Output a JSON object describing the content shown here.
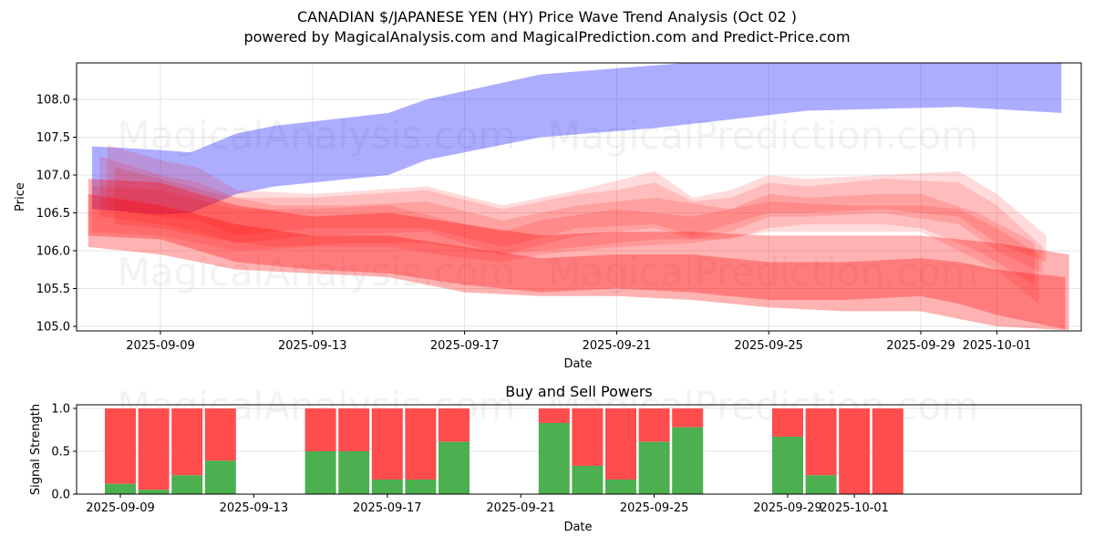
{
  "header": {
    "title": "CANADIAN $/JAPANESE YEN (HY) Price Wave Trend Analysis (Oct 02 )",
    "subtitle": "powered by MagicalAnalysis.com and MagicalPrediction.com and Predict-Price.com"
  },
  "watermarks": [
    "MagicalAnalysis.com",
    "MagicalPrediction.com"
  ],
  "colors": {
    "blue_band": "#0000ff",
    "red_band": "#ff0000",
    "buy": "#4caf50",
    "sell": "#ff4d4d",
    "grid": "#e6e6e6"
  },
  "chart_data": [
    {
      "type": "area",
      "title": "CANADIAN $/JAPANESE YEN (HY) Price Wave Trend Analysis (Oct 02 )",
      "xlabel": "Date",
      "ylabel": "Price",
      "ylim": [
        104.95,
        108.45
      ],
      "xlim_days_from_2025-09-09": [
        -2.2,
        24.2
      ],
      "yticks": [
        105.0,
        105.5,
        106.0,
        106.5,
        107.0,
        107.5,
        108.0
      ],
      "ytick_labels": [
        "105.0",
        "105.5",
        "106.0",
        "106.5",
        "107.0",
        "107.5",
        "108.0"
      ],
      "xticks_days": [
        0,
        4,
        8,
        12,
        16,
        20,
        22
      ],
      "xtick_labels": [
        "2025-09-09",
        "2025-09-13",
        "2025-09-17",
        "2025-09-21",
        "2025-09-25",
        "2025-09-29",
        "2025-10-01"
      ],
      "grid": true,
      "series": [
        {
          "name": "blue-trend-band",
          "color": "blue",
          "opacity": 0.32,
          "x_days": [
            -1.8,
            0,
            0.8,
            2,
            3,
            6,
            7,
            10,
            13,
            17,
            21,
            23.7
          ],
          "upper": [
            107.38,
            107.33,
            107.3,
            107.55,
            107.65,
            107.82,
            108.0,
            108.33,
            108.45,
            108.6,
            108.62,
            108.72
          ],
          "lower": [
            106.55,
            106.48,
            106.5,
            106.75,
            106.85,
            107.0,
            107.2,
            107.5,
            107.62,
            107.85,
            107.9,
            107.82
          ]
        },
        {
          "name": "red-band-upper-wave-1",
          "color": "red",
          "opacity": 0.14,
          "x_days": [
            -1.4,
            0,
            1,
            2,
            4,
            7,
            9,
            11,
            13,
            14,
            15,
            16,
            17,
            19,
            21,
            22,
            23.3
          ],
          "upper": [
            107.4,
            107.2,
            107.1,
            106.8,
            106.75,
            106.85,
            106.6,
            106.8,
            107.05,
            106.7,
            106.8,
            107.0,
            106.95,
            107.0,
            107.05,
            106.75,
            106.2
          ],
          "lower": [
            106.55,
            106.45,
            106.4,
            106.2,
            106.3,
            106.3,
            106.05,
            106.3,
            106.35,
            106.2,
            106.35,
            106.5,
            106.5,
            106.55,
            106.45,
            106.1,
            105.85
          ]
        },
        {
          "name": "red-band-upper-wave-2",
          "color": "red",
          "opacity": 0.14,
          "x_days": [
            -1.6,
            0,
            1,
            2,
            4,
            7,
            9,
            11,
            12,
            13,
            14,
            15,
            16,
            17,
            19,
            21,
            22,
            23.2
          ],
          "upper": [
            107.25,
            107.0,
            106.9,
            106.7,
            106.7,
            106.8,
            106.55,
            106.75,
            106.8,
            106.9,
            106.65,
            106.7,
            106.9,
            106.85,
            106.95,
            106.9,
            106.6,
            106.05
          ],
          "lower": [
            106.45,
            106.35,
            106.25,
            106.1,
            106.2,
            106.25,
            105.95,
            106.2,
            106.25,
            106.3,
            106.15,
            106.25,
            106.45,
            106.45,
            106.5,
            106.35,
            106.0,
            105.7
          ]
        },
        {
          "name": "red-band-upper-wave-3",
          "color": "red",
          "opacity": 0.14,
          "x_days": [
            -1.2,
            0,
            1.5,
            3,
            5,
            7,
            9,
            11,
            13,
            15,
            16,
            17,
            19,
            20,
            21.5,
            23
          ],
          "upper": [
            107.1,
            106.95,
            106.75,
            106.6,
            106.6,
            106.65,
            106.4,
            106.6,
            106.7,
            106.55,
            106.75,
            106.7,
            106.75,
            106.75,
            106.5,
            106.1
          ],
          "lower": [
            106.35,
            106.3,
            106.15,
            106.05,
            106.1,
            106.1,
            105.95,
            106.05,
            106.15,
            106.15,
            106.3,
            106.35,
            106.35,
            106.3,
            106.0,
            105.55
          ]
        },
        {
          "name": "red-band-upper-wave-4",
          "color": "red",
          "opacity": 0.14,
          "x_days": [
            -1.8,
            0,
            2,
            4,
            6,
            8,
            9,
            10,
            12,
            14,
            16,
            18,
            20,
            21,
            22,
            23.1
          ],
          "upper": [
            106.85,
            106.8,
            106.55,
            106.55,
            106.6,
            106.35,
            106.25,
            106.4,
            106.55,
            106.45,
            106.65,
            106.6,
            106.6,
            106.55,
            106.3,
            105.95
          ],
          "lower": [
            106.25,
            106.2,
            106.0,
            106.05,
            106.05,
            105.9,
            105.85,
            105.95,
            106.05,
            106.1,
            106.25,
            106.25,
            106.25,
            106.0,
            105.75,
            105.3
          ]
        },
        {
          "name": "red-band-lower-wave-1",
          "color": "red",
          "opacity": 0.3,
          "x_days": [
            -1.9,
            0,
            2,
            4,
            6,
            8,
            10,
            12,
            14,
            16,
            18,
            20,
            21,
            22,
            23.9
          ],
          "upper": [
            106.95,
            106.9,
            106.6,
            106.45,
            106.5,
            106.35,
            106.2,
            106.25,
            106.25,
            106.2,
            106.2,
            106.2,
            106.15,
            106.1,
            105.95
          ],
          "lower": [
            106.2,
            106.15,
            105.85,
            105.75,
            105.7,
            105.55,
            105.45,
            105.5,
            105.45,
            105.35,
            105.35,
            105.4,
            105.3,
            105.15,
            104.95
          ]
        },
        {
          "name": "red-band-lower-wave-2",
          "color": "red",
          "opacity": 0.3,
          "x_days": [
            -1.9,
            0,
            2,
            4,
            6,
            8,
            10,
            12,
            14,
            16,
            18,
            20,
            21,
            22,
            23.8
          ],
          "upper": [
            106.75,
            106.6,
            106.35,
            106.2,
            106.2,
            106.05,
            105.9,
            105.95,
            105.95,
            105.85,
            105.85,
            105.9,
            105.85,
            105.75,
            105.65
          ],
          "lower": [
            106.05,
            105.95,
            105.75,
            105.7,
            105.65,
            105.45,
            105.4,
            105.4,
            105.35,
            105.25,
            105.2,
            105.2,
            105.1,
            105.0,
            104.95
          ]
        }
      ]
    },
    {
      "type": "bar",
      "title": "Buy and Sell Powers",
      "xlabel": "Date",
      "ylabel": "Signal Strength",
      "ylim": [
        0,
        1.05
      ],
      "yticks": [
        0.0,
        0.5,
        1.0
      ],
      "ytick_labels": [
        "0.0",
        "0.5",
        "1.0"
      ],
      "xtick_labels": [
        "2025-09-09",
        "2025-09-13",
        "2025-09-17",
        "2025-09-21",
        "2025-09-25",
        "2025-09-29",
        "2025-10-01"
      ],
      "xticks_days": [
        0,
        4,
        8,
        12,
        16,
        20,
        22
      ],
      "stacked": true,
      "categories": [
        "2025-09-09",
        "2025-09-10",
        "2025-09-11",
        "2025-09-12",
        "2025-09-15",
        "2025-09-16",
        "2025-09-17",
        "2025-09-18",
        "2025-09-19",
        "2025-09-22",
        "2025-09-23",
        "2025-09-24",
        "2025-09-25",
        "2025-09-26",
        "2025-09-29",
        "2025-09-30",
        "2025-10-01",
        "2025-10-02"
      ],
      "x_days": [
        0,
        1,
        2,
        3,
        6,
        7,
        8,
        9,
        10,
        13,
        14,
        15,
        16,
        17,
        20,
        21,
        22,
        23
      ],
      "series": [
        {
          "name": "Buy",
          "color": "green",
          "values": [
            0.12,
            0.05,
            0.22,
            0.39,
            0.5,
            0.5,
            0.17,
            0.17,
            0.61,
            0.83,
            0.33,
            0.17,
            0.61,
            0.78,
            0.67,
            0.22,
            0.0,
            0.0
          ]
        },
        {
          "name": "Sell",
          "color": "red",
          "values": [
            0.88,
            0.95,
            0.78,
            0.61,
            0.5,
            0.5,
            0.83,
            0.83,
            0.39,
            0.17,
            0.67,
            0.83,
            0.39,
            0.22,
            0.33,
            0.78,
            1.0,
            1.0
          ]
        }
      ]
    }
  ]
}
